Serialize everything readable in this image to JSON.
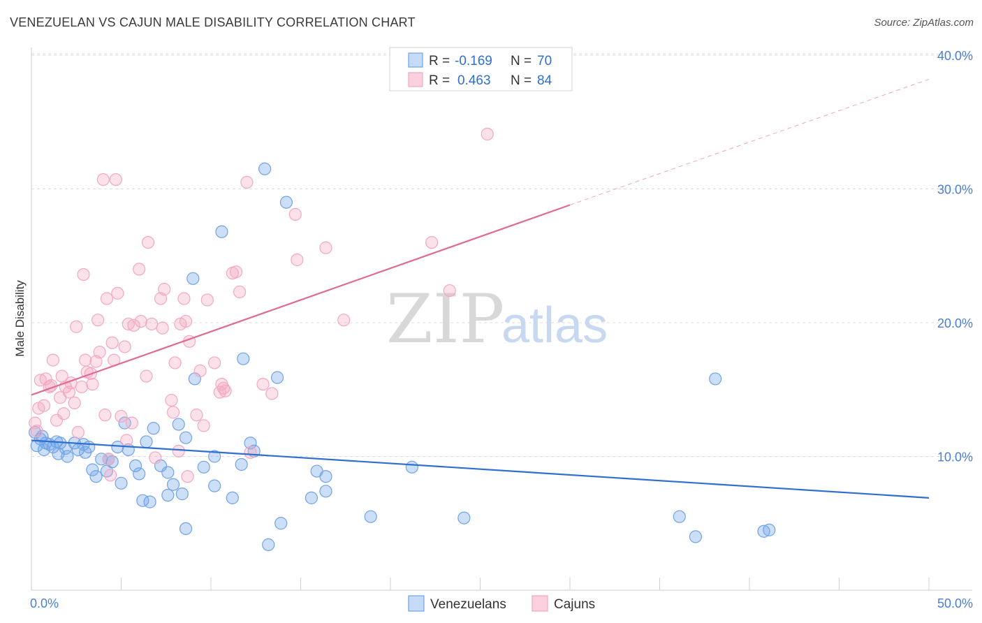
{
  "title": "VENEZUELAN VS CAJUN MALE DISABILITY CORRELATION CHART",
  "source": "Source: ZipAtlas.com",
  "watermark": {
    "zip": "ZIP",
    "atlas": "atlas"
  },
  "legend": {
    "rows": [
      {
        "r_label": "R =",
        "r_value": "-0.169",
        "n_label": "N =",
        "n_value": "70"
      },
      {
        "r_label": "R =",
        "r_value": "0.463",
        "n_label": "N =",
        "n_value": "84"
      }
    ]
  },
  "bottom_legend": [
    "Venezuelans",
    "Cajuns"
  ],
  "chart_data": {
    "type": "scatter",
    "title": "VENEZUELAN VS CAJUN MALE DISABILITY CORRELATION CHART",
    "xlabel": "",
    "ylabel": "Male Disability",
    "xlim": [
      0,
      50
    ],
    "ylim": [
      0,
      40
    ],
    "x_tick_labels": [
      "0.0%",
      "50.0%"
    ],
    "y_ticks": [
      10,
      20,
      30,
      40
    ],
    "y_tick_labels": [
      "10.0%",
      "20.0%",
      "30.0%",
      "40.0%"
    ],
    "grid": "horizontal dashed",
    "legend_placement": "top-center",
    "colors": {
      "venezuelans": "#6fa3e8",
      "cajuns": "#f3a8c0",
      "venezuelans_line": "#2f6fcf",
      "cajuns_line": "#e06a93"
    },
    "series": [
      {
        "name": "Venezuelans",
        "r": -0.169,
        "n": 70,
        "trend": {
          "x0": 0,
          "y0": 11.2,
          "x1": 50,
          "y1": 6.9
        },
        "points": [
          [
            0.2,
            11.8
          ],
          [
            0.3,
            10.8
          ],
          [
            0.5,
            11.3
          ],
          [
            0.7,
            10.5
          ],
          [
            0.8,
            11.0
          ],
          [
            1.0,
            10.9
          ],
          [
            1.2,
            10.7
          ],
          [
            1.4,
            11.1
          ],
          [
            1.6,
            11.0
          ],
          [
            1.9,
            10.6
          ],
          [
            2.0,
            10.0
          ],
          [
            2.4,
            11.0
          ],
          [
            2.6,
            10.5
          ],
          [
            2.9,
            10.9
          ],
          [
            3.2,
            10.7
          ],
          [
            3.4,
            9.0
          ],
          [
            3.6,
            8.5
          ],
          [
            3.9,
            9.8
          ],
          [
            4.2,
            8.9
          ],
          [
            4.3,
            9.8
          ],
          [
            4.8,
            10.7
          ],
          [
            5.0,
            8.0
          ],
          [
            5.4,
            10.5
          ],
          [
            5.2,
            12.5
          ],
          [
            5.8,
            9.3
          ],
          [
            6.0,
            8.7
          ],
          [
            6.2,
            6.7
          ],
          [
            6.4,
            11.1
          ],
          [
            6.6,
            6.6
          ],
          [
            6.8,
            12.1
          ],
          [
            7.2,
            9.3
          ],
          [
            7.6,
            8.8
          ],
          [
            7.6,
            7.1
          ],
          [
            7.9,
            7.9
          ],
          [
            8.2,
            12.4
          ],
          [
            8.4,
            7.2
          ],
          [
            8.6,
            4.6
          ],
          [
            8.6,
            11.4
          ],
          [
            9.0,
            23.3
          ],
          [
            9.1,
            15.8
          ],
          [
            9.6,
            9.2
          ],
          [
            10.2,
            10.0
          ],
          [
            10.6,
            26.8
          ],
          [
            10.2,
            7.8
          ],
          [
            11.2,
            6.9
          ],
          [
            11.7,
            9.4
          ],
          [
            11.8,
            17.3
          ],
          [
            12.2,
            11.0
          ],
          [
            12.4,
            10.4
          ],
          [
            13.0,
            31.5
          ],
          [
            13.2,
            3.4
          ],
          [
            13.7,
            15.9
          ],
          [
            13.9,
            5.0
          ],
          [
            14.2,
            29.0
          ],
          [
            15.6,
            6.9
          ],
          [
            15.9,
            8.9
          ],
          [
            16.4,
            8.5
          ],
          [
            16.4,
            7.4
          ],
          [
            18.9,
            5.5
          ],
          [
            21.2,
            9.2
          ],
          [
            24.1,
            5.4
          ],
          [
            36.1,
            5.5
          ],
          [
            37.0,
            4.0
          ],
          [
            38.1,
            15.8
          ],
          [
            40.8,
            4.4
          ],
          [
            41.1,
            4.5
          ],
          [
            0.6,
            11.5
          ],
          [
            1.5,
            10.2
          ],
          [
            3.0,
            10.3
          ],
          [
            4.5,
            9.6
          ]
        ]
      },
      {
        "name": "Cajuns",
        "r": 0.463,
        "n": 84,
        "trend": {
          "x0": 0,
          "y0": 14.6,
          "x1": 30,
          "y1": 28.8
        },
        "trend_dashed": {
          "x0": 30,
          "y0": 28.8,
          "x1": 50,
          "y1": 38.2
        },
        "points": [
          [
            0.2,
            12.5
          ],
          [
            0.3,
            11.9
          ],
          [
            0.4,
            13.6
          ],
          [
            0.5,
            15.7
          ],
          [
            0.7,
            13.8
          ],
          [
            0.8,
            15.8
          ],
          [
            1.0,
            15.2
          ],
          [
            1.1,
            15.3
          ],
          [
            1.2,
            17.2
          ],
          [
            1.4,
            12.7
          ],
          [
            1.6,
            14.4
          ],
          [
            1.7,
            16.0
          ],
          [
            1.8,
            13.2
          ],
          [
            1.9,
            15.2
          ],
          [
            2.1,
            14.8
          ],
          [
            2.2,
            15.5
          ],
          [
            2.4,
            14.0
          ],
          [
            2.5,
            19.7
          ],
          [
            2.6,
            11.8
          ],
          [
            2.8,
            15.2
          ],
          [
            2.9,
            23.6
          ],
          [
            3.0,
            17.2
          ],
          [
            3.1,
            16.3
          ],
          [
            3.3,
            16.2
          ],
          [
            3.4,
            15.4
          ],
          [
            3.6,
            17.1
          ],
          [
            3.7,
            20.2
          ],
          [
            3.8,
            17.8
          ],
          [
            4.0,
            30.7
          ],
          [
            4.1,
            13.1
          ],
          [
            4.2,
            21.8
          ],
          [
            4.3,
            9.8
          ],
          [
            4.4,
            8.6
          ],
          [
            4.5,
            18.5
          ],
          [
            4.6,
            17.2
          ],
          [
            4.7,
            30.7
          ],
          [
            4.8,
            22.2
          ],
          [
            5.0,
            13.0
          ],
          [
            5.2,
            18.2
          ],
          [
            5.3,
            11.2
          ],
          [
            5.4,
            19.9
          ],
          [
            5.6,
            12.5
          ],
          [
            5.7,
            19.8
          ],
          [
            6.0,
            24.0
          ],
          [
            6.1,
            20.1
          ],
          [
            6.4,
            16.0
          ],
          [
            6.5,
            26.0
          ],
          [
            6.7,
            19.9
          ],
          [
            6.9,
            9.9
          ],
          [
            7.2,
            21.8
          ],
          [
            7.3,
            19.6
          ],
          [
            7.4,
            22.5
          ],
          [
            7.8,
            14.2
          ],
          [
            7.9,
            13.3
          ],
          [
            8.0,
            17.0
          ],
          [
            8.2,
            10.4
          ],
          [
            8.3,
            19.9
          ],
          [
            8.5,
            21.8
          ],
          [
            8.6,
            20.1
          ],
          [
            8.7,
            8.5
          ],
          [
            8.8,
            18.6
          ],
          [
            9.2,
            13.1
          ],
          [
            9.4,
            16.4
          ],
          [
            9.6,
            12.3
          ],
          [
            9.8,
            21.7
          ],
          [
            10.2,
            17.0
          ],
          [
            10.6,
            15.4
          ],
          [
            10.7,
            15.1
          ],
          [
            10.8,
            14.9
          ],
          [
            11.2,
            23.7
          ],
          [
            11.4,
            23.8
          ],
          [
            11.6,
            22.3
          ],
          [
            12.0,
            30.5
          ],
          [
            12.2,
            10.3
          ],
          [
            12.9,
            15.4
          ],
          [
            13.4,
            14.7
          ],
          [
            14.7,
            28.1
          ],
          [
            14.8,
            24.7
          ],
          [
            16.4,
            25.6
          ],
          [
            17.4,
            20.2
          ],
          [
            22.3,
            26.0
          ],
          [
            23.3,
            22.4
          ],
          [
            25.4,
            34.1
          ],
          [
            10.5,
            14.8
          ]
        ]
      }
    ]
  }
}
